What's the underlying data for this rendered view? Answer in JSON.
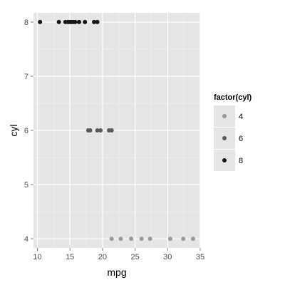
{
  "chart_data": {
    "type": "scatter",
    "xlabel": "mpg",
    "ylabel": "cyl",
    "xlim": [
      9.4,
      35.0
    ],
    "ylim": [
      3.83,
      8.17
    ],
    "xticks": [
      "10",
      "15",
      "20",
      "25",
      "30",
      "35"
    ],
    "yticks": [
      "4",
      "5",
      "6",
      "7",
      "8"
    ],
    "grid": true,
    "legend": {
      "title": "factor(cyl)",
      "position": "right",
      "items": [
        {
          "label": "4",
          "color": "#9a9a9a"
        },
        {
          "label": "6",
          "color": "#5a5a5a"
        },
        {
          "label": "8",
          "color": "#151515"
        }
      ]
    },
    "series": [
      {
        "name": "4",
        "color": "#9a9a9a",
        "x": [
          21.4,
          22.8,
          24.4,
          26.0,
          27.3,
          30.4,
          32.4,
          33.9
        ],
        "y": [
          4,
          4,
          4,
          4,
          4,
          4,
          4,
          4
        ]
      },
      {
        "name": "6",
        "color": "#5a5a5a",
        "x": [
          17.8,
          18.1,
          19.2,
          19.7,
          21.0,
          21.4
        ],
        "y": [
          6,
          6,
          6,
          6,
          6,
          6
        ]
      },
      {
        "name": "8",
        "color": "#151515",
        "x": [
          10.4,
          13.3,
          14.3,
          14.7,
          15.0,
          15.2,
          15.5,
          15.8,
          16.4,
          17.3,
          18.7,
          19.2
        ],
        "y": [
          8,
          8,
          8,
          8,
          8,
          8,
          8,
          8,
          8,
          8,
          8,
          8
        ]
      }
    ]
  }
}
